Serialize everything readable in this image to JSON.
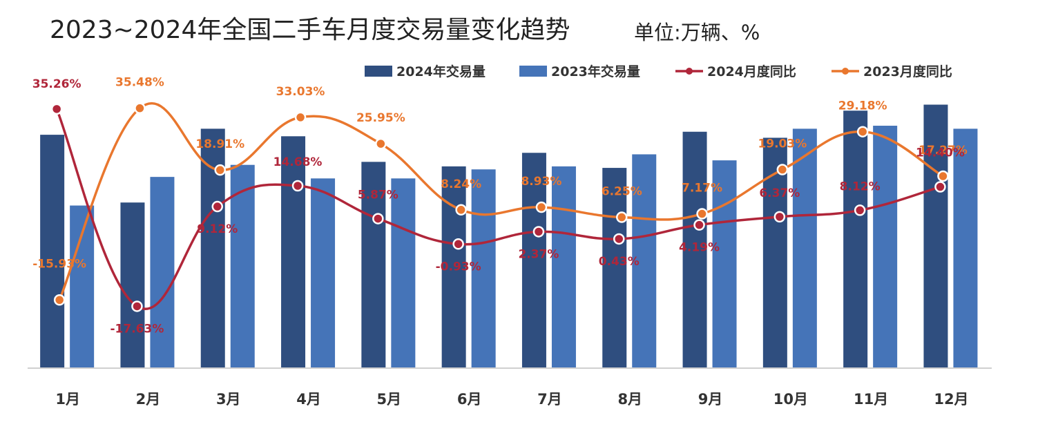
{
  "title": "2023~2024年全国二手车月度交易量变化趋势",
  "unit": "单位:万辆、%",
  "colors": {
    "bar2024": "#2f4e7f",
    "bar2023": "#4574b8",
    "line2024": "#b0263a",
    "line2023": "#e9772e"
  },
  "chart_data": {
    "type": "bar",
    "categories": [
      "1月",
      "2月",
      "3月",
      "4月",
      "5月",
      "6月",
      "7月",
      "8月",
      "9月",
      "10月",
      "11月",
      "12月"
    ],
    "series": [
      {
        "name": "2024年交易量",
        "type": "bar",
        "values": [
          155,
          110,
          159,
          154,
          137,
          134,
          143,
          133,
          157,
          153,
          171,
          175
        ]
      },
      {
        "name": "2023年交易量",
        "type": "bar",
        "values": [
          108,
          127,
          135,
          126,
          126,
          132,
          134,
          142,
          138,
          159,
          161,
          159
        ]
      },
      {
        "name": "2024月度同比",
        "type": "line",
        "values": [
          35.26,
          -17.63,
          9.12,
          14.68,
          5.87,
          -0.93,
          2.37,
          0.43,
          4.19,
          6.37,
          8.12,
          14.4
        ],
        "labels": [
          "35.26%",
          "-17.63%",
          "9.12%",
          "14.68%",
          "5.87%",
          "-0.93%",
          "2.37%",
          "0.43%",
          "4.19%",
          "6.37%",
          "8.12%",
          "14.40%"
        ]
      },
      {
        "name": "2023月度同比",
        "type": "line",
        "values": [
          -15.93,
          35.48,
          18.91,
          33.03,
          25.95,
          8.24,
          8.93,
          6.25,
          7.17,
          19.03,
          29.18,
          17.27
        ],
        "labels": [
          "-15.93%",
          "35.48%",
          "18.91%",
          "33.03%",
          "25.95%",
          "8.24%",
          "8.93%",
          "6.25%",
          "7.17%",
          "19.03%",
          "29.18%",
          "17.27%"
        ]
      }
    ],
    "legend_position": "top-right",
    "grid": false
  }
}
